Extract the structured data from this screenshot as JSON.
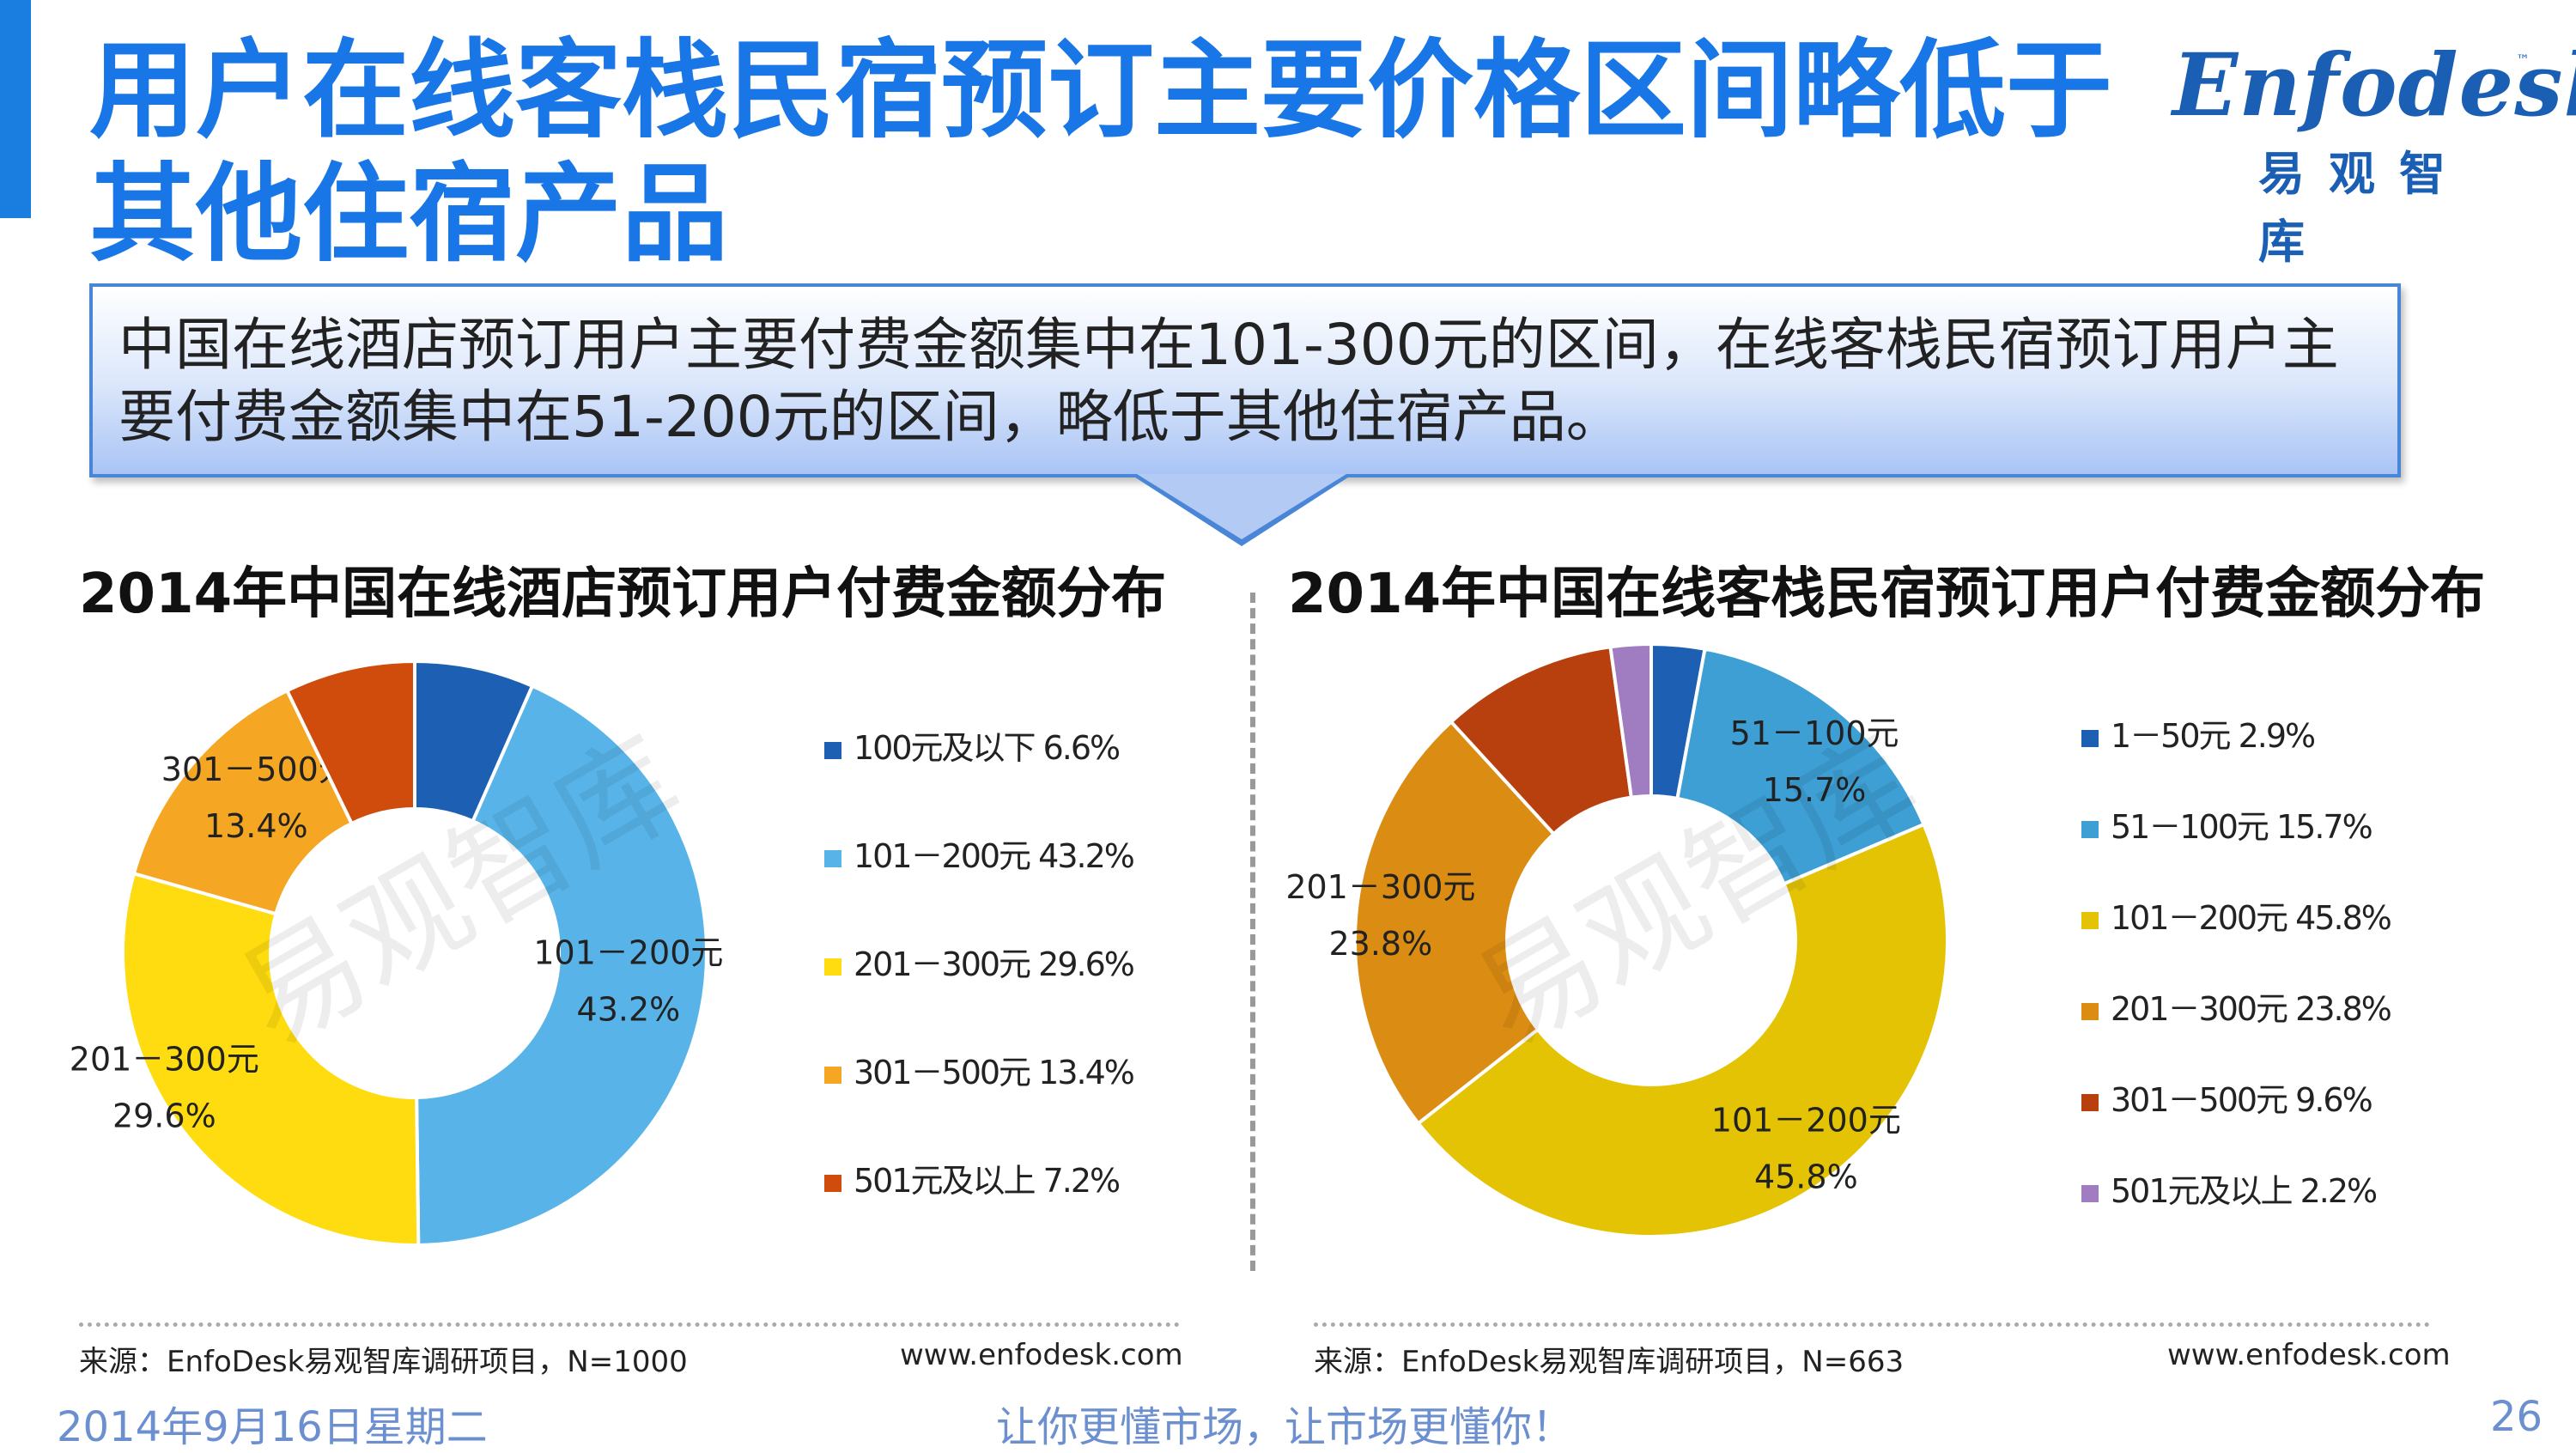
{
  "header": {
    "title": "用户在线客栈民宿预订主要价格区间略低于其他住宿产品",
    "logo_brand": "Enfodesk",
    "logo_tm": "™",
    "logo_cn": "易观智库"
  },
  "callout": {
    "text": "中国在线酒店预订用户主要付费金额集中在101-300元的区间，在线客栈民宿预订用户主要付费金额集中在51-200元的区间，略低于其他住宿产品。"
  },
  "watermark": "易观智库",
  "colors": {
    "title_blue": "#1976e6",
    "callout_border": "#4a86d8",
    "footer_blue": "#6b8fcf"
  },
  "chart_data": [
    {
      "type": "donut",
      "title": "2014年中国在线酒店预订用户付费金额分布",
      "categories": [
        "100元及以下",
        "101－200元",
        "201－300元",
        "301－500元",
        "501元及以上"
      ],
      "values": [
        6.6,
        43.2,
        29.6,
        13.4,
        7.2
      ],
      "unit": "%",
      "colors": [
        "#1c5fb3",
        "#58b4e8",
        "#ffdc0f",
        "#f5a623",
        "#cf4c0c"
      ],
      "legend": [
        "100元及以下 6.6%",
        "101－200元 43.2%",
        "201－300元 29.6%",
        "301－500元 13.4%",
        "501元及以上 7.2%"
      ],
      "labels": [
        null,
        {
          "cat": "101－200元",
          "val": "43.2%"
        },
        {
          "cat": "201－300元",
          "val": "29.6%"
        },
        {
          "cat": "301－500元",
          "val": "13.4%"
        },
        null
      ],
      "legend_position": "right",
      "source": "来源：EnfoDesk易观智库调研项目，N=1000",
      "website": "www.enfodesk.com"
    },
    {
      "type": "donut",
      "title": "2014年中国在线客栈民宿预订用户付费金额分布",
      "categories": [
        "1－50元",
        "51－100元",
        "101－200元",
        "201－300元",
        "301－500元",
        "501元及以上"
      ],
      "values": [
        2.9,
        15.7,
        45.8,
        23.8,
        9.6,
        2.2
      ],
      "unit": "%",
      "colors": [
        "#1c5fb3",
        "#3d9fd3",
        "#e3c304",
        "#db8c12",
        "#b8400e",
        "#a07cc0"
      ],
      "legend": [
        "1－50元 2.9%",
        "51－100元 15.7%",
        "101－200元 45.8%",
        "201－300元 23.8%",
        "301－500元 9.6%",
        "501元及以上 2.2%"
      ],
      "labels": [
        null,
        {
          "cat": "51－100元",
          "val": "15.7%"
        },
        {
          "cat": "101－200元",
          "val": "45.8%"
        },
        {
          "cat": "201－300元",
          "val": "23.8%"
        },
        null,
        null
      ],
      "legend_position": "right",
      "source": "来源：EnfoDesk易观智库调研项目，N=663",
      "website": "www.enfodesk.com"
    }
  ],
  "footer": {
    "date": "2014年9月16日星期二",
    "slogan": "让你更懂市场，让市场更懂你！",
    "page": "26"
  }
}
